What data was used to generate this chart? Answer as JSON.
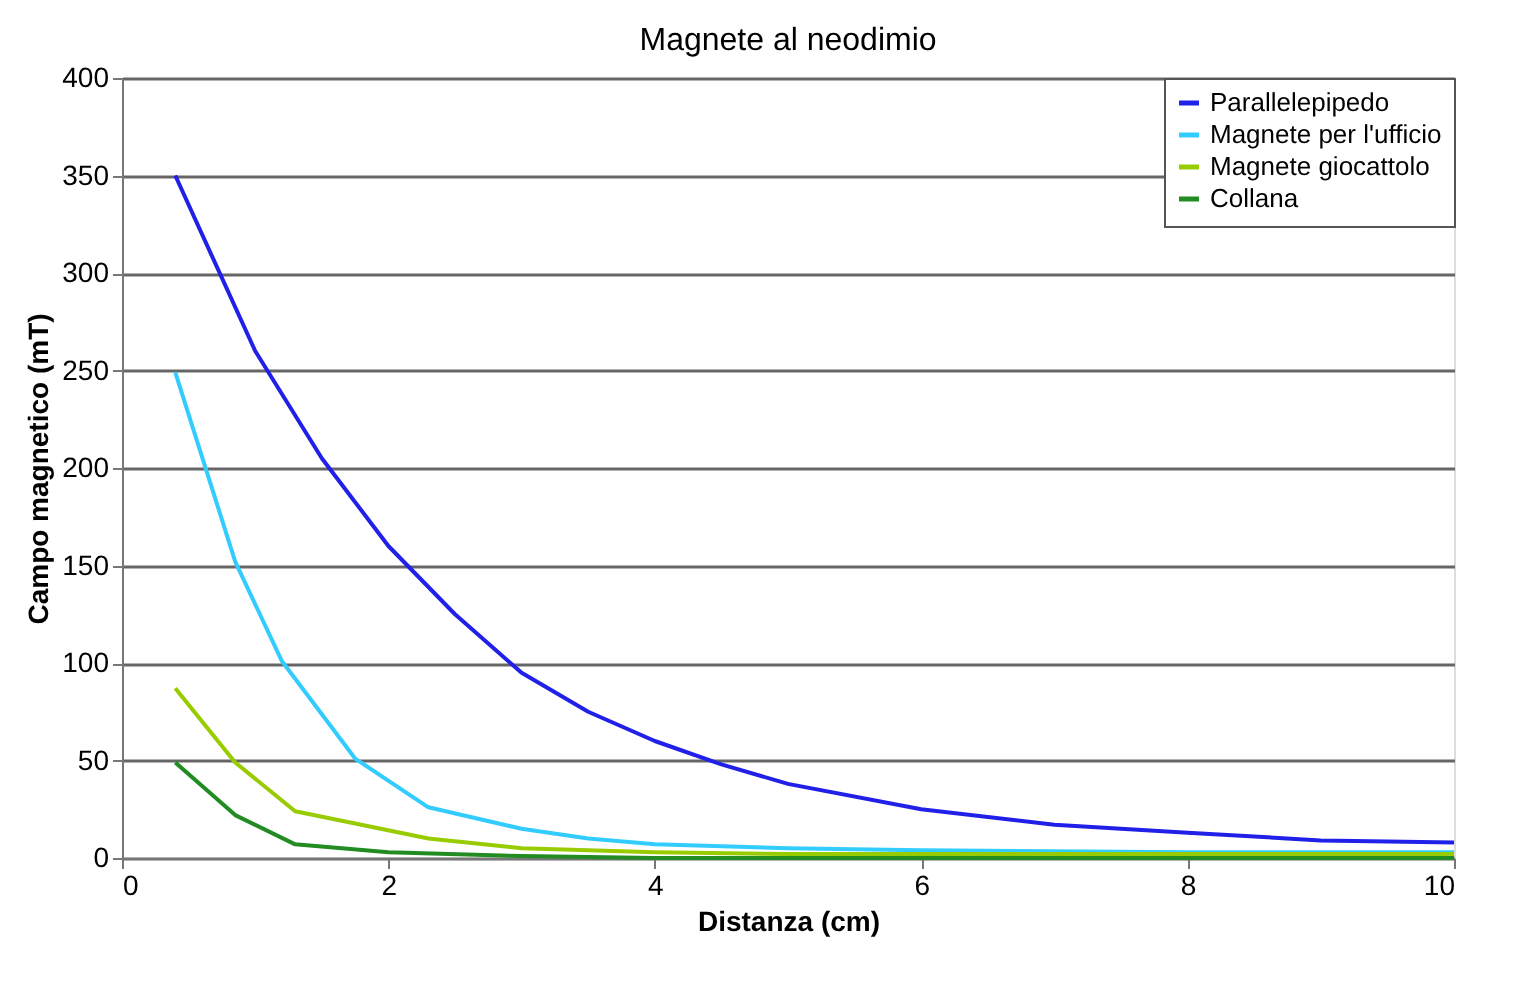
{
  "chart_data": {
    "type": "line",
    "title": "Magnete al neodimio",
    "xlabel": "Distanza (cm)",
    "ylabel": "Campo magnetico (mT)",
    "xlim": [
      0,
      10
    ],
    "xticks": [
      0,
      2,
      4,
      6,
      8,
      10
    ],
    "ylim": [
      0,
      400
    ],
    "yticks": [
      0,
      50,
      100,
      150,
      200,
      250,
      300,
      350,
      400
    ],
    "grid": "y",
    "legend": "top right",
    "marker": "none",
    "line_style": "solid",
    "series": [
      {
        "name": "Parallelepipedo",
        "color": "#2020e8",
        "x": [
          0.4,
          1,
          1.5,
          2,
          2.5,
          3,
          3.5,
          4,
          4.5,
          5,
          6,
          7,
          8,
          9,
          10
        ],
        "values": [
          350,
          260,
          205,
          160,
          125,
          95,
          75,
          60,
          48,
          38,
          25,
          17,
          13,
          9,
          8
        ]
      },
      {
        "name": "Magnete per l'ufficio",
        "color": "#33ccff",
        "x": [
          0.4,
          0.85,
          1.2,
          1.75,
          2.3,
          3,
          3.5,
          4,
          5,
          6,
          8,
          10
        ],
        "values": [
          249,
          152,
          101,
          51,
          26,
          15,
          10,
          7,
          5,
          4,
          3,
          3
        ]
      },
      {
        "name": "Magnete giocattolo",
        "color": "#99cc00",
        "x": [
          0.4,
          0.85,
          1.3,
          2.3,
          3,
          4,
          5,
          6,
          8,
          10
        ],
        "values": [
          87,
          49,
          24,
          10,
          5,
          3,
          2,
          2,
          2,
          2
        ]
      },
      {
        "name": "Collana",
        "color": "#228b22",
        "x": [
          0.4,
          0.85,
          1.3,
          2,
          3,
          4,
          6,
          8,
          10
        ],
        "values": [
          49,
          22,
          7,
          3,
          1,
          0,
          0,
          0,
          0
        ]
      }
    ]
  }
}
